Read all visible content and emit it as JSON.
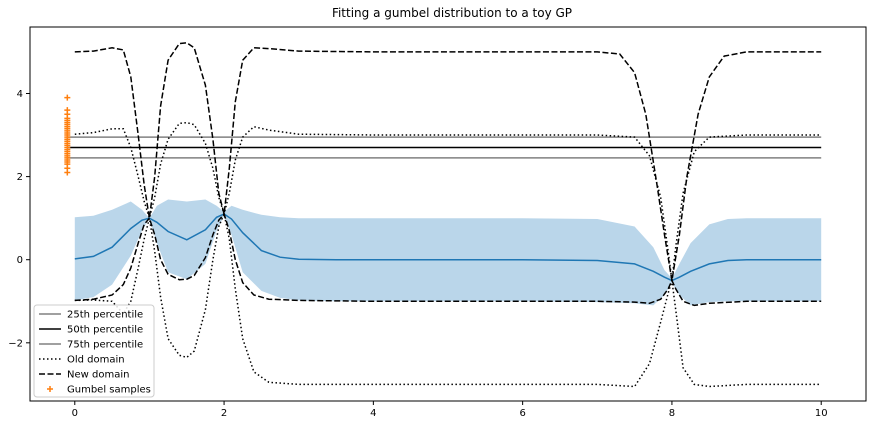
{
  "chart_data": {
    "type": "line",
    "title": "Fitting a gumbel distribution to a toy GP",
    "xlabel": "",
    "ylabel": "",
    "xlim": [
      -0.6,
      10.6
    ],
    "ylim": [
      -3.4,
      5.6
    ],
    "xticks": [
      0,
      2,
      4,
      6,
      8,
      10
    ],
    "yticks": [
      -2,
      0,
      2,
      4
    ],
    "xtick_labels": [
      "0",
      "2",
      "4",
      "6",
      "8",
      "10"
    ],
    "ytick_labels": [
      "−2",
      "0",
      "2",
      "4"
    ],
    "grid": false,
    "legend_position": "lower-left",
    "colors": {
      "band": "#bad6ea",
      "mean": "#1f77b4",
      "percentile_outer": "#808080",
      "percentile_mid": "#000000",
      "old_domain": "#000000",
      "new_domain": "#000000",
      "gumbel": "#ff7f0e"
    },
    "gp": {
      "x": [
        0,
        0.25,
        0.5,
        0.75,
        0.9,
        1.0,
        1.1,
        1.25,
        1.5,
        1.75,
        1.9,
        2.0,
        2.1,
        2.25,
        2.5,
        2.75,
        3.0,
        3.5,
        4,
        5,
        6,
        7,
        7.5,
        7.75,
        7.9,
        8.0,
        8.1,
        8.25,
        8.5,
        8.75,
        9,
        9.5,
        10
      ],
      "mean": [
        0.02,
        0.08,
        0.3,
        0.75,
        0.95,
        1.0,
        0.9,
        0.68,
        0.48,
        0.72,
        1.02,
        1.1,
        0.98,
        0.65,
        0.22,
        0.06,
        0.01,
        0.0,
        0.0,
        0.0,
        0.0,
        -0.02,
        -0.1,
        -0.28,
        -0.42,
        -0.5,
        -0.42,
        -0.28,
        -0.1,
        -0.02,
        0.0,
        0.0,
        0.0
      ],
      "upper": [
        1.02,
        1.06,
        1.2,
        1.4,
        1.2,
        1.0,
        1.3,
        1.45,
        1.4,
        1.45,
        1.3,
        1.15,
        1.3,
        1.2,
        1.08,
        1.02,
        1.0,
        1.0,
        1.0,
        1.0,
        1.0,
        0.98,
        0.8,
        0.3,
        -0.25,
        -0.45,
        -0.1,
        0.4,
        0.85,
        0.98,
        1.0,
        1.0,
        1.0
      ],
      "lower": [
        -0.98,
        -0.9,
        -0.6,
        0.1,
        0.7,
        1.0,
        0.4,
        -0.3,
        -0.47,
        -0.1,
        0.7,
        1.05,
        0.6,
        -0.3,
        -0.75,
        -0.92,
        -0.98,
        -1.0,
        -1.0,
        -1.0,
        -1.0,
        -1.02,
        -1.05,
        -1.1,
        -0.85,
        -0.55,
        -0.85,
        -1.1,
        -1.02,
        -1.0,
        -1.0,
        -1.0,
        -1.0
      ]
    },
    "series": [
      {
        "name": "25th percentile",
        "style": "solid",
        "x": [
          -0.1,
          10
        ],
        "y": [
          2.45,
          2.45
        ]
      },
      {
        "name": "50th percentile",
        "style": "solid",
        "x": [
          -0.1,
          10
        ],
        "y": [
          2.7,
          2.7
        ]
      },
      {
        "name": "75th percentile",
        "style": "solid",
        "x": [
          -0.1,
          10
        ],
        "y": [
          2.95,
          2.95
        ]
      },
      {
        "name": "Old domain",
        "style": "dotted",
        "segments": [
          {
            "x": [
              0,
              0.25,
              0.5,
              0.65,
              0.75,
              0.85,
              0.93,
              1.0,
              1.07,
              1.15,
              1.25,
              1.4,
              1.5,
              1.6,
              1.75,
              1.85,
              1.93,
              2.0,
              2.07,
              2.15,
              2.25,
              2.4,
              2.6,
              3.0,
              4,
              5,
              6,
              7,
              7.5,
              7.7,
              7.85,
              7.95,
              8.0,
              8.05,
              8.15,
              8.3,
              8.5,
              9,
              10
            ],
            "y": [
              3.02,
              3.06,
              3.15,
              3.15,
              2.7,
              2.0,
              1.4,
              1.0,
              1.5,
              2.3,
              2.9,
              3.28,
              3.3,
              3.25,
              2.8,
              2.2,
              1.5,
              1.1,
              1.6,
              2.4,
              2.95,
              3.2,
              3.12,
              3.02,
              3.0,
              3.0,
              3.0,
              3.0,
              2.95,
              2.5,
              1.5,
              0.2,
              -0.5,
              0.3,
              1.6,
              2.6,
              2.95,
              3.0,
              3.0
            ]
          },
          {
            "x": [
              0,
              0.25,
              0.5,
              0.65,
              0.75,
              0.85,
              0.93,
              1.0,
              1.07,
              1.15,
              1.25,
              1.4,
              1.5,
              1.6,
              1.75,
              1.85,
              1.93,
              2.0,
              2.07,
              2.15,
              2.25,
              2.4,
              2.6,
              3.0,
              4,
              5,
              6,
              7,
              7.5,
              7.7,
              7.85,
              7.95,
              8.0,
              8.05,
              8.15,
              8.3,
              8.5,
              9,
              10
            ],
            "y": [
              -0.98,
              -0.97,
              -1.0,
              -1.3,
              -1.0,
              -0.2,
              0.5,
              1.0,
              0.2,
              -0.9,
              -1.9,
              -2.3,
              -2.35,
              -2.2,
              -1.2,
              0.0,
              0.8,
              1.1,
              0.5,
              -0.7,
              -1.9,
              -2.7,
              -2.95,
              -3.0,
              -3.0,
              -3.0,
              -3.0,
              -3.0,
              -3.05,
              -2.5,
              -1.5,
              -0.8,
              -0.5,
              -1.2,
              -2.6,
              -3.0,
              -3.05,
              -3.0,
              -3.0
            ]
          }
        ]
      },
      {
        "name": "New domain",
        "style": "dashed",
        "segments": [
          {
            "x": [
              0,
              0.25,
              0.5,
              0.65,
              0.75,
              0.85,
              0.93,
              1.0,
              1.07,
              1.15,
              1.25,
              1.4,
              1.5,
              1.6,
              1.75,
              1.85,
              1.93,
              2.0,
              2.07,
              2.15,
              2.25,
              2.4,
              2.6,
              3.0,
              4,
              5,
              6,
              7,
              7.3,
              7.5,
              7.65,
              7.8,
              7.9,
              8.0,
              8.1,
              8.2,
              8.35,
              8.5,
              8.7,
              9,
              10
            ],
            "y": [
              5.0,
              5.02,
              5.1,
              5.05,
              4.4,
              3.0,
              1.8,
              1.0,
              2.0,
              3.7,
              4.8,
              5.2,
              5.22,
              5.1,
              4.2,
              2.9,
              1.6,
              1.1,
              2.2,
              3.8,
              4.8,
              5.1,
              5.08,
              5.02,
              5.0,
              5.0,
              5.0,
              5.0,
              4.95,
              4.5,
              3.5,
              1.8,
              0.6,
              -0.5,
              0.6,
              2.0,
              3.5,
              4.4,
              4.9,
              5.0,
              5.0
            ]
          },
          {
            "x": [
              0,
              0.25,
              0.5,
              0.65,
              0.75,
              0.85,
              0.93,
              1.0,
              1.07,
              1.15,
              1.25,
              1.4,
              1.5,
              1.6,
              1.75,
              1.85,
              1.93,
              2.0,
              2.07,
              2.15,
              2.25,
              2.4,
              2.6,
              3.0,
              4,
              5,
              6,
              7,
              7.5,
              7.7,
              7.85,
              7.95,
              8.0,
              8.05,
              8.15,
              8.3,
              8.5,
              9,
              10
            ],
            "y": [
              -0.98,
              -0.95,
              -0.85,
              -0.6,
              -0.2,
              0.4,
              0.85,
              1.0,
              0.6,
              0.0,
              -0.35,
              -0.48,
              -0.47,
              -0.38,
              0.05,
              0.6,
              0.95,
              1.1,
              0.7,
              0.0,
              -0.55,
              -0.85,
              -0.95,
              -0.98,
              -1.0,
              -1.0,
              -1.0,
              -1.0,
              -1.02,
              -1.05,
              -0.95,
              -0.7,
              -0.5,
              -0.7,
              -1.0,
              -1.1,
              -1.05,
              -1.0,
              -1.0
            ]
          }
        ]
      },
      {
        "name": "Gumbel samples",
        "style": "marker-plus",
        "x": [
          -0.1,
          -0.1,
          -0.1,
          -0.1,
          -0.1,
          -0.1,
          -0.1,
          -0.1,
          -0.1,
          -0.1,
          -0.1,
          -0.1,
          -0.1,
          -0.1,
          -0.1,
          -0.1,
          -0.1,
          -0.1,
          -0.1,
          -0.1,
          -0.1,
          -0.1,
          -0.1,
          -0.1,
          -0.1,
          -0.1,
          -0.1,
          -0.1
        ],
        "y": [
          3.9,
          3.6,
          3.5,
          3.4,
          3.35,
          3.3,
          3.25,
          3.2,
          3.15,
          3.1,
          3.05,
          3.0,
          2.95,
          2.9,
          2.85,
          2.8,
          2.75,
          2.7,
          2.65,
          2.6,
          2.55,
          2.5,
          2.45,
          2.4,
          2.35,
          2.3,
          2.2,
          2.1
        ]
      }
    ],
    "legend": [
      "25th percentile",
      "50th percentile",
      "75th percentile",
      "Old domain",
      "New domain",
      "Gumbel samples"
    ]
  }
}
